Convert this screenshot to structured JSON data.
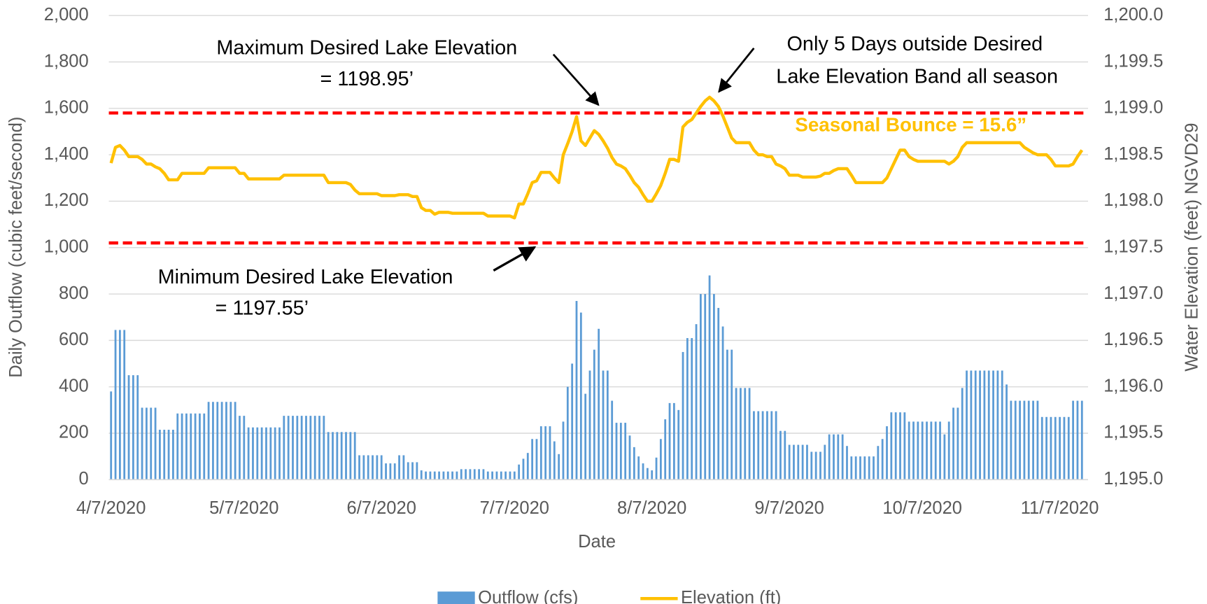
{
  "chart_data": {
    "type": "bar",
    "xlabel": "Date",
    "ylabel": "Daily Outflow (cubic feet/second)",
    "y2label": "Water Elevation (feet) NGVD29",
    "categories": [
      "4/7/2020",
      null,
      null,
      null,
      null,
      null,
      null,
      null,
      null,
      null,
      null,
      null,
      null,
      null,
      null,
      null,
      null,
      null,
      null,
      null,
      null,
      null,
      null,
      null,
      null,
      null,
      null,
      null,
      null,
      null,
      "5/7/2020",
      null,
      null,
      null,
      null,
      null,
      null,
      null,
      null,
      null,
      null,
      null,
      null,
      null,
      null,
      null,
      null,
      null,
      null,
      null,
      null,
      null,
      null,
      null,
      null,
      null,
      null,
      null,
      null,
      null,
      null,
      "6/7/2020",
      null,
      null,
      null,
      null,
      null,
      null,
      null,
      null,
      null,
      null,
      null,
      null,
      null,
      null,
      null,
      null,
      null,
      null,
      null,
      null,
      null,
      null,
      null,
      null,
      null,
      null,
      null,
      null,
      null,
      "7/7/2020",
      null,
      null,
      null,
      null,
      null,
      null,
      null,
      null,
      null,
      null,
      null,
      null,
      null,
      null,
      null,
      null,
      null,
      null,
      null,
      null,
      null,
      null,
      null,
      null,
      null,
      null,
      null,
      null,
      null,
      null,
      "8/7/2020",
      null,
      null,
      null,
      null,
      null,
      null,
      null,
      null,
      null,
      null,
      null,
      null,
      null,
      null,
      null,
      null,
      null,
      null,
      null,
      null,
      null,
      null,
      null,
      null,
      null,
      null,
      null,
      null,
      null,
      null,
      "9/7/2020",
      null,
      null,
      null,
      null,
      null,
      null,
      null,
      null,
      null,
      null,
      null,
      null,
      null,
      null,
      null,
      null,
      null,
      null,
      null,
      null,
      null,
      null,
      null,
      null,
      null,
      null,
      null,
      null,
      null,
      "10/7/2020",
      null,
      null,
      null,
      null,
      null,
      null,
      null,
      null,
      null,
      null,
      null,
      null,
      null,
      null,
      null,
      null,
      null,
      null,
      null,
      null,
      null,
      null,
      null,
      null,
      null,
      null,
      null,
      null,
      null,
      null,
      "11/7/2020",
      null,
      null,
      null,
      null,
      null
    ],
    "series": [
      {
        "name": "Outflow (cfs)",
        "type": "bar",
        "color": "#5b9bd5",
        "values": [
          380,
          645,
          645,
          645,
          450,
          450,
          450,
          310,
          310,
          310,
          310,
          215,
          215,
          215,
          215,
          285,
          285,
          285,
          285,
          285,
          285,
          285,
          335,
          335,
          335,
          335,
          335,
          335,
          335,
          275,
          275,
          225,
          225,
          225,
          225,
          225,
          225,
          225,
          225,
          275,
          275,
          275,
          275,
          275,
          275,
          275,
          275,
          275,
          275,
          205,
          205,
          205,
          205,
          205,
          205,
          205,
          105,
          105,
          105,
          105,
          105,
          105,
          70,
          70,
          70,
          105,
          105,
          75,
          75,
          75,
          40,
          35,
          35,
          35,
          35,
          35,
          35,
          35,
          35,
          45,
          45,
          45,
          45,
          45,
          45,
          35,
          35,
          35,
          35,
          35,
          35,
          35,
          65,
          90,
          115,
          175,
          175,
          230,
          230,
          230,
          165,
          110,
          250,
          400,
          500,
          770,
          720,
          370,
          470,
          560,
          650,
          470,
          470,
          340,
          245,
          245,
          245,
          190,
          140,
          100,
          70,
          50,
          40,
          95,
          175,
          260,
          330,
          330,
          300,
          550,
          610,
          610,
          670,
          800,
          800,
          880,
          800,
          740,
          660,
          560,
          560,
          395,
          395,
          395,
          395,
          295,
          295,
          295,
          295,
          295,
          295,
          210,
          210,
          150,
          150,
          150,
          150,
          150,
          120,
          120,
          120,
          150,
          195,
          195,
          195,
          195,
          145,
          100,
          100,
          100,
          100,
          100,
          100,
          145,
          175,
          230,
          290,
          290,
          290,
          290,
          250,
          250,
          250,
          250,
          250,
          250,
          250,
          250,
          195,
          250,
          310,
          310,
          395,
          470,
          470,
          470,
          470,
          470,
          470,
          470,
          470,
          470,
          410,
          340,
          340,
          340,
          340,
          340,
          340,
          340,
          270,
          270,
          270,
          270,
          270,
          270,
          270,
          340,
          340,
          340
        ]
      },
      {
        "name": "Elevation (ft)",
        "type": "line",
        "axis": "y2",
        "color": "#ffc000",
        "values": [
          1198.41,
          1198.58,
          1198.6,
          1198.55,
          1198.48,
          1198.48,
          1198.48,
          1198.45,
          1198.4,
          1198.4,
          1198.37,
          1198.35,
          1198.3,
          1198.23,
          1198.23,
          1198.23,
          1198.3,
          1198.3,
          1198.3,
          1198.3,
          1198.3,
          1198.3,
          1198.36,
          1198.36,
          1198.36,
          1198.36,
          1198.36,
          1198.36,
          1198.36,
          1198.3,
          1198.3,
          1198.24,
          1198.24,
          1198.24,
          1198.24,
          1198.24,
          1198.24,
          1198.24,
          1198.24,
          1198.28,
          1198.28,
          1198.28,
          1198.28,
          1198.28,
          1198.28,
          1198.28,
          1198.28,
          1198.28,
          1198.28,
          1198.2,
          1198.2,
          1198.2,
          1198.2,
          1198.2,
          1198.18,
          1198.12,
          1198.08,
          1198.08,
          1198.08,
          1198.08,
          1198.08,
          1198.06,
          1198.06,
          1198.06,
          1198.06,
          1198.07,
          1198.07,
          1198.07,
          1198.05,
          1198.05,
          1197.93,
          1197.9,
          1197.9,
          1197.86,
          1197.88,
          1197.88,
          1197.88,
          1197.87,
          1197.87,
          1197.87,
          1197.87,
          1197.87,
          1197.87,
          1197.87,
          1197.87,
          1197.84,
          1197.84,
          1197.84,
          1197.84,
          1197.84,
          1197.84,
          1197.82,
          1197.97,
          1197.97,
          1198.08,
          1198.2,
          1198.22,
          1198.31,
          1198.31,
          1198.31,
          1198.25,
          1198.2,
          1198.5,
          1198.62,
          1198.75,
          1198.91,
          1198.65,
          1198.6,
          1198.68,
          1198.76,
          1198.72,
          1198.65,
          1198.57,
          1198.47,
          1198.4,
          1198.38,
          1198.35,
          1198.28,
          1198.2,
          1198.15,
          1198.07,
          1198.0,
          1198.0,
          1198.08,
          1198.17,
          1198.3,
          1198.45,
          1198.45,
          1198.43,
          1198.8,
          1198.85,
          1198.88,
          1198.95,
          1199.02,
          1199.08,
          1199.12,
          1199.08,
          1199.02,
          1198.92,
          1198.8,
          1198.68,
          1198.63,
          1198.63,
          1198.63,
          1198.63,
          1198.55,
          1198.5,
          1198.5,
          1198.48,
          1198.48,
          1198.4,
          1198.38,
          1198.35,
          1198.28,
          1198.28,
          1198.28,
          1198.26,
          1198.26,
          1198.26,
          1198.26,
          1198.27,
          1198.3,
          1198.3,
          1198.33,
          1198.35,
          1198.35,
          1198.35,
          1198.28,
          1198.2,
          1198.2,
          1198.2,
          1198.2,
          1198.2,
          1198.2,
          1198.2,
          1198.25,
          1198.35,
          1198.45,
          1198.55,
          1198.55,
          1198.48,
          1198.45,
          1198.43,
          1198.43,
          1198.43,
          1198.43,
          1198.43,
          1198.43,
          1198.43,
          1198.4,
          1198.43,
          1198.48,
          1198.58,
          1198.63,
          1198.63,
          1198.63,
          1198.63,
          1198.63,
          1198.63,
          1198.63,
          1198.63,
          1198.63,
          1198.63,
          1198.63,
          1198.63,
          1198.63,
          1198.58,
          1198.55,
          1198.52,
          1198.5,
          1198.5,
          1198.5,
          1198.45,
          1198.38,
          1198.38,
          1198.38,
          1198.38,
          1198.4,
          1198.48,
          1198.55
        ]
      }
    ],
    "reference_lines": [
      {
        "value": 1198.95,
        "axis": "y2",
        "color": "#ff0000"
      },
      {
        "value": 1197.55,
        "axis": "y2",
        "color": "#ff0000"
      }
    ],
    "annotations": [
      "Maximum Desired Lake Elevation",
      "= 1198.95’",
      "Only 5 Days outside Desired",
      "Lake Elevation Band all season",
      "Seasonal Bounce = 15.6”",
      "Minimum Desired Lake Elevation",
      "= 1197.55’"
    ],
    "ylim": [
      0,
      2000
    ],
    "yticks": [
      0,
      200,
      400,
      600,
      800,
      {
        "value": 1000,
        "label": "1,000"
      },
      {
        "value": 1200,
        "label": "1,200"
      },
      {
        "value": 1400,
        "label": "1,400"
      },
      {
        "value": 1600,
        "label": "1,600"
      },
      {
        "value": 1800,
        "label": "1,800"
      },
      {
        "value": 2000,
        "label": "2,000"
      }
    ],
    "y2lim": [
      1195,
      1200
    ],
    "y2ticks": [
      {
        "value": 1195,
        "label": "1,195.0"
      },
      {
        "value": 1195.5,
        "label": "1,195.5"
      },
      {
        "value": 1196,
        "label": "1,196.0"
      },
      {
        "value": 1196.5,
        "label": "1,196.5"
      },
      {
        "value": 1197,
        "label": "1,197.0"
      },
      {
        "value": 1197.5,
        "label": "1,197.5"
      },
      {
        "value": 1198,
        "label": "1,198.0"
      },
      {
        "value": 1198.5,
        "label": "1,198.5"
      },
      {
        "value": 1199,
        "label": "1,199.0"
      },
      {
        "value": 1199.5,
        "label": "1,199.5"
      },
      {
        "value": 1200,
        "label": "1,200.0"
      }
    ],
    "grid": true,
    "legend": "bottom"
  }
}
